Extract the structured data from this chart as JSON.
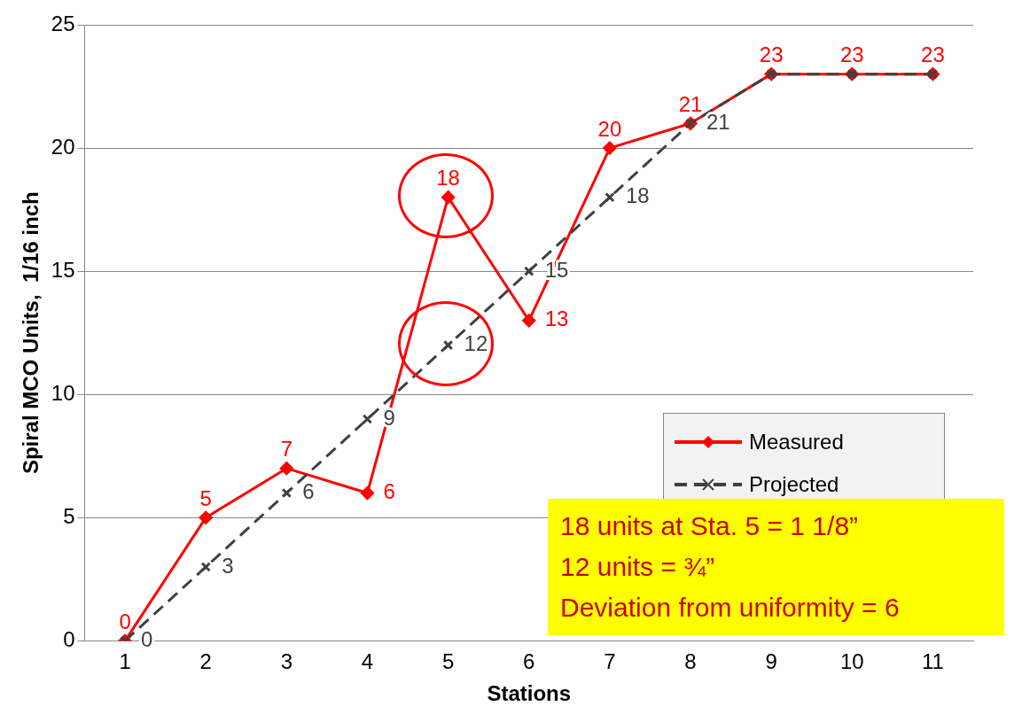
{
  "chart_data": {
    "type": "line",
    "xlabel": "Stations",
    "ylabel": "Spiral MCO Units,  1/16 inch",
    "categories": [
      "1",
      "2",
      "3",
      "4",
      "5",
      "6",
      "7",
      "8",
      "9",
      "10",
      "11"
    ],
    "series": [
      {
        "name": "Measured",
        "color": "#ff0000",
        "marker": "diamond",
        "line_style": "solid",
        "values": [
          0,
          5,
          7,
          6,
          18,
          13,
          20,
          21,
          23,
          23,
          23
        ],
        "value_labels": [
          "0",
          "5",
          "7",
          "6",
          "18",
          "13",
          "20",
          "21",
          "23",
          "23",
          "23"
        ]
      },
      {
        "name": "Projected",
        "color": "#404040",
        "marker": "cross",
        "line_style": "dashed",
        "values": [
          0,
          3,
          6,
          9,
          12,
          15,
          18,
          21,
          23,
          23,
          23
        ],
        "value_labels": [
          "0",
          "3",
          "6",
          "9",
          "12",
          "15",
          "18",
          "21",
          null,
          null,
          null
        ]
      }
    ],
    "ylim": [
      0,
      25
    ],
    "yticks": [
      0,
      5,
      10,
      15,
      20,
      25
    ],
    "grid": "y",
    "legend": "right",
    "annotations": [
      "18 units at Sta. 5 = 1 1/8”",
      "12 units = ¾”",
      "Deviation from uniformity = 6"
    ]
  }
}
